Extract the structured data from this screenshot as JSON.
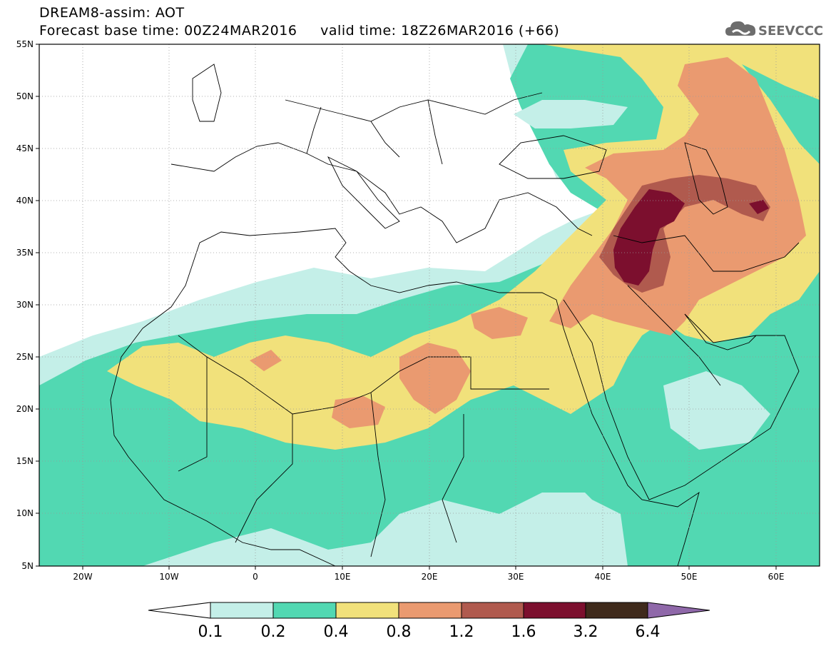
{
  "header": {
    "title_line1": "DREAM8-assim: AOT",
    "base_label": "Forecast base time: 00Z24MAR2016",
    "valid_label": "valid time: 18Z26MAR2016 (+66)",
    "logo_text": "SEEVCCC",
    "logo_icon": "cloud-icon"
  },
  "map": {
    "lon_range": [
      -25,
      65
    ],
    "lat_range": [
      5,
      55
    ],
    "lat_ticks": [
      "55N",
      "50N",
      "45N",
      "40N",
      "35N",
      "30N",
      "25N",
      "20N",
      "15N",
      "10N",
      "5N"
    ],
    "lon_ticks": [
      "20W",
      "10W",
      "0",
      "10E",
      "20E",
      "30E",
      "40E",
      "50E",
      "60E"
    ],
    "grid": "dotted"
  },
  "colorbar": {
    "labels": [
      "0.1",
      "0.2",
      "0.4",
      "0.8",
      "1.2",
      "1.6",
      "3.2",
      "6.4"
    ],
    "colors": [
      "#ffffff",
      "#c4efe8",
      "#52d8b2",
      "#f1e17b",
      "#ea9a70",
      "#b05a4e",
      "#7c0f2e",
      "#3f2a1b",
      "#8f68a9"
    ]
  }
}
